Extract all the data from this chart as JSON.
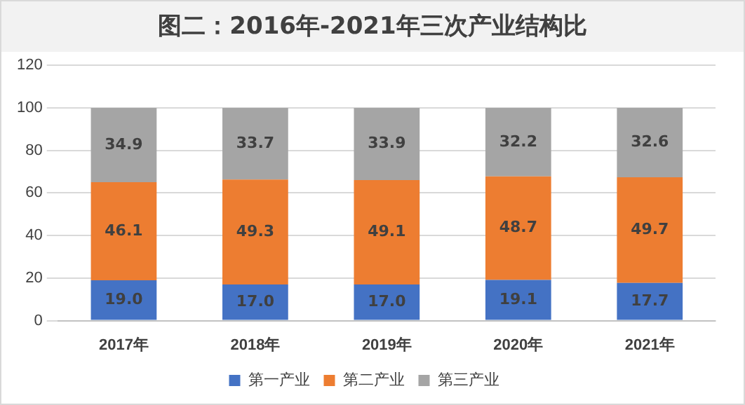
{
  "chart_data": {
    "type": "bar",
    "title": "图二：2016年-2021年三次产业结构比",
    "categories": [
      "2017年",
      "2018年",
      "2019年",
      "2020年",
      "2021年"
    ],
    "stacked": true,
    "ylim": [
      0,
      120
    ],
    "yticks": [
      0,
      20,
      40,
      60,
      80,
      100,
      120
    ],
    "grid": "y",
    "legend": "bottom",
    "series": [
      {
        "name": "第一产业",
        "color": "#4472c4",
        "values": [
          19.0,
          17.0,
          17.0,
          19.1,
          17.7
        ],
        "value_labels": [
          "19.0",
          "17.0",
          "17.0",
          "19.1",
          "17.7"
        ]
      },
      {
        "name": "第二产业",
        "color": "#ed7d31",
        "values": [
          46.1,
          49.3,
          49.1,
          48.7,
          49.7
        ],
        "value_labels": [
          "46.1",
          "49.3",
          "49.1",
          "48.7",
          "49.7"
        ]
      },
      {
        "name": "第三产业",
        "color": "#a5a5a5",
        "values": [
          34.9,
          33.7,
          33.9,
          32.2,
          32.6
        ],
        "value_labels": [
          "34.9",
          "33.7",
          "33.9",
          "32.2",
          "32.6"
        ]
      }
    ]
  }
}
